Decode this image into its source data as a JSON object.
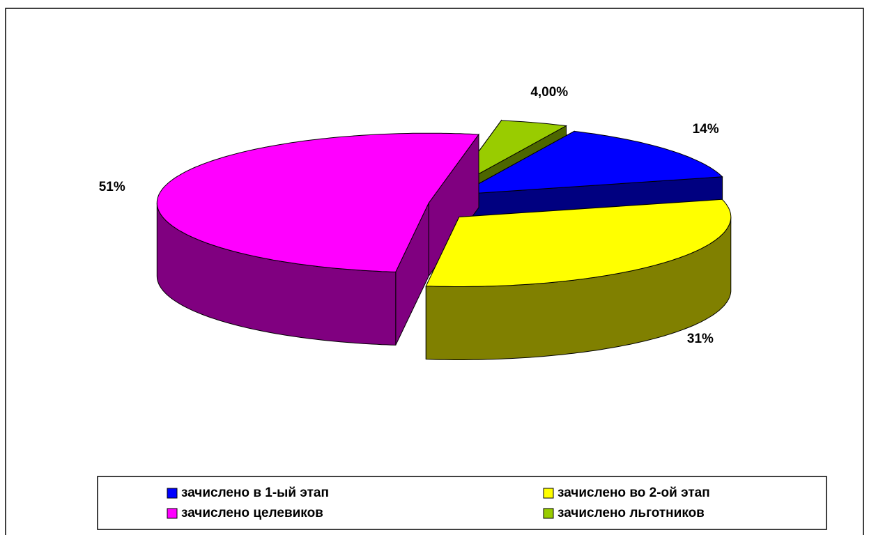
{
  "chart_data": {
    "type": "pie3d",
    "categories": [
      "зачислено в 1-ый этап",
      "зачислено во 2-ой этап",
      "зачислено целевиков",
      "зачислено льготников"
    ],
    "values": [
      14,
      31,
      51,
      4
    ],
    "value_labels": [
      "14%",
      "31%",
      "51%",
      "4,00%"
    ],
    "colors": [
      "#0000ff",
      "#ffff00",
      "#ff00ff",
      "#99cc00"
    ],
    "side_colors": [
      "#000080",
      "#808000",
      "#800080",
      "#4d6600"
    ],
    "legend": "bottom"
  }
}
